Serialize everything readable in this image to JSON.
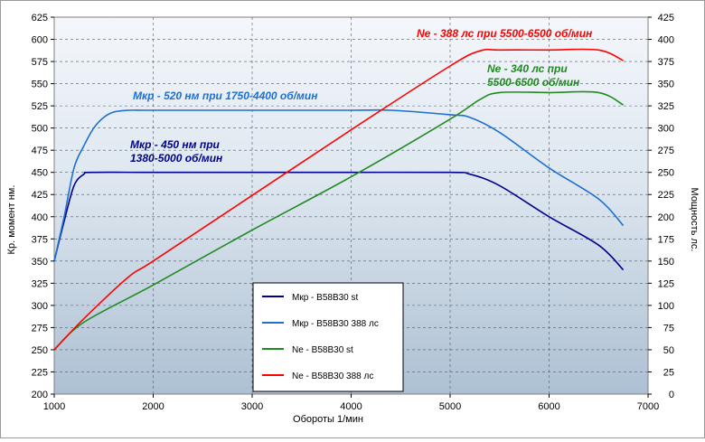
{
  "chart_data": {
    "type": "line",
    "title": "",
    "xlabel": "Обороты  1/мин",
    "ylabel_left": "Кр. момент  нм.",
    "ylabel_right": "Мощность  лс.",
    "xlim": [
      1000,
      7000
    ],
    "x_ticks": [
      "1000",
      "2000",
      "3000",
      "4000",
      "5000",
      "6000",
      "7000"
    ],
    "ylim_left": [
      200,
      625
    ],
    "y_left_ticks": [
      "200",
      "225",
      "250",
      "275",
      "300",
      "325",
      "350",
      "375",
      "400",
      "425",
      "450",
      "475",
      "500",
      "525",
      "550",
      "575",
      "600",
      "625"
    ],
    "ylim_right": [
      0,
      425
    ],
    "y_right_ticks": [
      "0",
      "25",
      "50",
      "75",
      "100",
      "125",
      "150",
      "175",
      "200",
      "225",
      "250",
      "275",
      "300",
      "325",
      "350",
      "375",
      "400",
      "425"
    ],
    "grid": true,
    "legend_position": "bottom-center",
    "series": [
      {
        "name": "Мкр - B58B30 st",
        "axis": "left",
        "color": "#00008b",
        "x": [
          1000,
          1100,
          1200,
          1300,
          1380,
          2000,
          3000,
          4000,
          5000,
          5200,
          5500,
          6000,
          6500,
          6750
        ],
        "y": [
          350,
          395,
          435,
          448,
          450,
          450,
          450,
          450,
          450,
          448,
          435,
          400,
          368,
          340
        ]
      },
      {
        "name": "Мкр - B58B30  388 лс",
        "axis": "left",
        "color": "#1e6fd0",
        "x": [
          1000,
          1100,
          1200,
          1300,
          1400,
          1500,
          1600,
          1750,
          2000,
          3000,
          4000,
          4400,
          5000,
          5200,
          5500,
          6000,
          6500,
          6750
        ],
        "y": [
          350,
          400,
          455,
          480,
          500,
          512,
          518,
          520,
          520,
          520,
          520,
          520,
          515,
          512,
          495,
          455,
          420,
          390
        ]
      },
      {
        "name": "Ne  - B58B30 st",
        "axis": "right",
        "color": "#218a21",
        "x": [
          1000,
          1300,
          2000,
          3000,
          4000,
          5000,
          5300,
          5500,
          6000,
          6500,
          6750
        ],
        "y": [
          50,
          81,
          123,
          185,
          245,
          310,
          332,
          340,
          340,
          340,
          326
        ]
      },
      {
        "name": "Ne  - B58B30  388 лс",
        "axis": "right",
        "color": "#ff0000",
        "x": [
          1000,
          1300,
          1750,
          2000,
          3000,
          4000,
          5000,
          5300,
          5500,
          6000,
          6500,
          6750
        ],
        "y": [
          50,
          85,
          132,
          150,
          224,
          298,
          370,
          387,
          388,
          388,
          388,
          376
        ]
      }
    ],
    "annotations": [
      {
        "lines": [
          "Ne - 388 лс при 5500-6500 об/мин"
        ],
        "color": "#ff0000"
      },
      {
        "lines": [
          "Ne - 340 лс при",
          "5500-6500 об/мин"
        ],
        "color": "#218a21"
      },
      {
        "lines": [
          "Мкр - 520 нм при 1750-4400 об/мин"
        ],
        "color": "#1e6fd0"
      },
      {
        "lines": [
          "Мкр - 450 нм при",
          "1380-5000 об/мин"
        ],
        "color": "#00008b"
      }
    ]
  }
}
